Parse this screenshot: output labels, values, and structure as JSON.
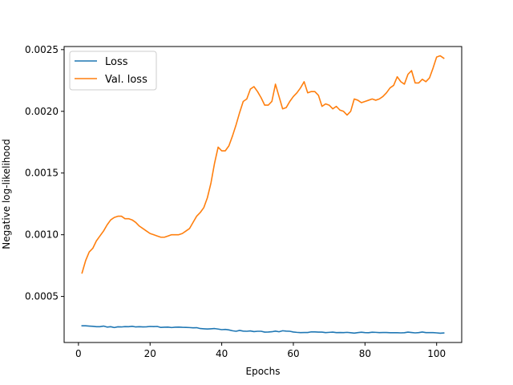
{
  "chart_data": {
    "type": "line",
    "title": "",
    "xlabel": "Epochs",
    "ylabel": "Negative log-likelihood",
    "xlim": [
      -4,
      107
    ],
    "ylim": [
      0.000127,
      0.002525
    ],
    "xticks": [
      0,
      20,
      40,
      60,
      80,
      100
    ],
    "xtick_labels": [
      "0",
      "20",
      "40",
      "60",
      "80",
      "100"
    ],
    "yticks": [
      0.0005,
      0.001,
      0.0015,
      0.002,
      0.0025
    ],
    "ytick_labels": [
      "0.0005",
      "0.0010",
      "0.0015",
      "0.0020",
      "0.0025"
    ],
    "grid": false,
    "legend": "top-left",
    "series": [
      {
        "name": "Loss",
        "color": "#1f77b4",
        "x": [
          1,
          2,
          3,
          4,
          5,
          6,
          7,
          8,
          9,
          10,
          11,
          12,
          13,
          14,
          15,
          16,
          17,
          18,
          19,
          20,
          21,
          22,
          23,
          24,
          25,
          26,
          27,
          28,
          29,
          30,
          31,
          32,
          33,
          34,
          35,
          36,
          37,
          38,
          39,
          40,
          41,
          42,
          43,
          44,
          45,
          46,
          47,
          48,
          49,
          50,
          51,
          52,
          53,
          54,
          55,
          56,
          57,
          58,
          59,
          60,
          61,
          62,
          63,
          64,
          65,
          66,
          67,
          68,
          69,
          70,
          71,
          72,
          73,
          74,
          75,
          76,
          77,
          78,
          79,
          80,
          81,
          82,
          83,
          84,
          85,
          86,
          87,
          88,
          89,
          90,
          91,
          92,
          93,
          94,
          95,
          96,
          97,
          98,
          99,
          100,
          101,
          102
        ],
        "y": [
          0.000262,
          0.000262,
          0.00026,
          0.000258,
          0.000255,
          0.000255,
          0.00026,
          0.000252,
          0.000255,
          0.000248,
          0.000254,
          0.000253,
          0.000256,
          0.000255,
          0.000258,
          0.000253,
          0.000255,
          0.000253,
          0.000254,
          0.000257,
          0.000256,
          0.000257,
          0.000249,
          0.000251,
          0.000252,
          0.000248,
          0.000251,
          0.000252,
          0.00025,
          0.000249,
          0.000248,
          0.000246,
          0.000247,
          0.00024,
          0.000238,
          0.000236,
          0.000238,
          0.00024,
          0.000236,
          0.000231,
          0.000233,
          0.000229,
          0.000222,
          0.000218,
          0.000225,
          0.000219,
          0.000218,
          0.000221,
          0.000215,
          0.000218,
          0.000218,
          0.000211,
          0.000212,
          0.000214,
          0.000219,
          0.000214,
          0.000222,
          0.000219,
          0.000218,
          0.000212,
          0.000209,
          0.000207,
          0.000208,
          0.000208,
          0.000213,
          0.000213,
          0.000211,
          0.000211,
          0.000207,
          0.000209,
          0.000211,
          0.000207,
          0.000208,
          0.000207,
          0.000209,
          0.000206,
          0.000203,
          0.000207,
          0.00021,
          0.000207,
          0.000206,
          0.00021,
          0.000209,
          0.000207,
          0.000208,
          0.000208,
          0.000206,
          0.000206,
          0.000206,
          0.000205,
          0.000206,
          0.000211,
          0.000208,
          0.000205,
          0.000207,
          0.000212,
          0.000207,
          0.000207,
          0.000207,
          0.000205,
          0.000202,
          0.000204
        ]
      },
      {
        "name": "Val. loss",
        "color": "#ff7f0e",
        "x": [
          1,
          2,
          3,
          4,
          5,
          6,
          7,
          8,
          9,
          10,
          11,
          12,
          13,
          14,
          15,
          16,
          17,
          18,
          19,
          20,
          21,
          22,
          23,
          24,
          25,
          26,
          27,
          28,
          29,
          30,
          31,
          32,
          33,
          34,
          35,
          36,
          37,
          38,
          39,
          40,
          41,
          42,
          43,
          44,
          45,
          46,
          47,
          48,
          49,
          50,
          51,
          52,
          53,
          54,
          55,
          56,
          57,
          58,
          59,
          60,
          61,
          62,
          63,
          64,
          65,
          66,
          67,
          68,
          69,
          70,
          71,
          72,
          73,
          74,
          75,
          76,
          77,
          78,
          79,
          80,
          81,
          82,
          83,
          84,
          85,
          86,
          87,
          88,
          89,
          90,
          91,
          92,
          93,
          94,
          95,
          96,
          97,
          98,
          99,
          100,
          101,
          102
        ],
        "y": [
          0.00069,
          0.00079,
          0.00086,
          0.00089,
          0.00095,
          0.00099,
          0.00103,
          0.00108,
          0.00112,
          0.00114,
          0.00115,
          0.00115,
          0.00113,
          0.00113,
          0.00112,
          0.0011,
          0.00107,
          0.00105,
          0.00103,
          0.00101,
          0.001,
          0.00099,
          0.00098,
          0.00098,
          0.00099,
          0.001,
          0.001,
          0.001,
          0.00101,
          0.00103,
          0.00105,
          0.0011,
          0.00115,
          0.00118,
          0.00122,
          0.0013,
          0.00142,
          0.00158,
          0.00171,
          0.00168,
          0.00168,
          0.00172,
          0.0018,
          0.00189,
          0.00199,
          0.00208,
          0.0021,
          0.00218,
          0.0022,
          0.00216,
          0.00211,
          0.00205,
          0.00205,
          0.00208,
          0.00222,
          0.00212,
          0.00202,
          0.00203,
          0.00208,
          0.00212,
          0.00215,
          0.00219,
          0.00224,
          0.00215,
          0.00216,
          0.00216,
          0.00213,
          0.00204,
          0.00206,
          0.00205,
          0.00202,
          0.00204,
          0.00201,
          0.002,
          0.00197,
          0.002,
          0.0021,
          0.00209,
          0.00207,
          0.00208,
          0.00209,
          0.0021,
          0.00209,
          0.0021,
          0.00212,
          0.00215,
          0.00219,
          0.00221,
          0.00228,
          0.00224,
          0.00222,
          0.0023,
          0.00233,
          0.00223,
          0.00223,
          0.00226,
          0.00224,
          0.00227,
          0.00235,
          0.00244,
          0.00245,
          0.00243
        ]
      }
    ]
  }
}
